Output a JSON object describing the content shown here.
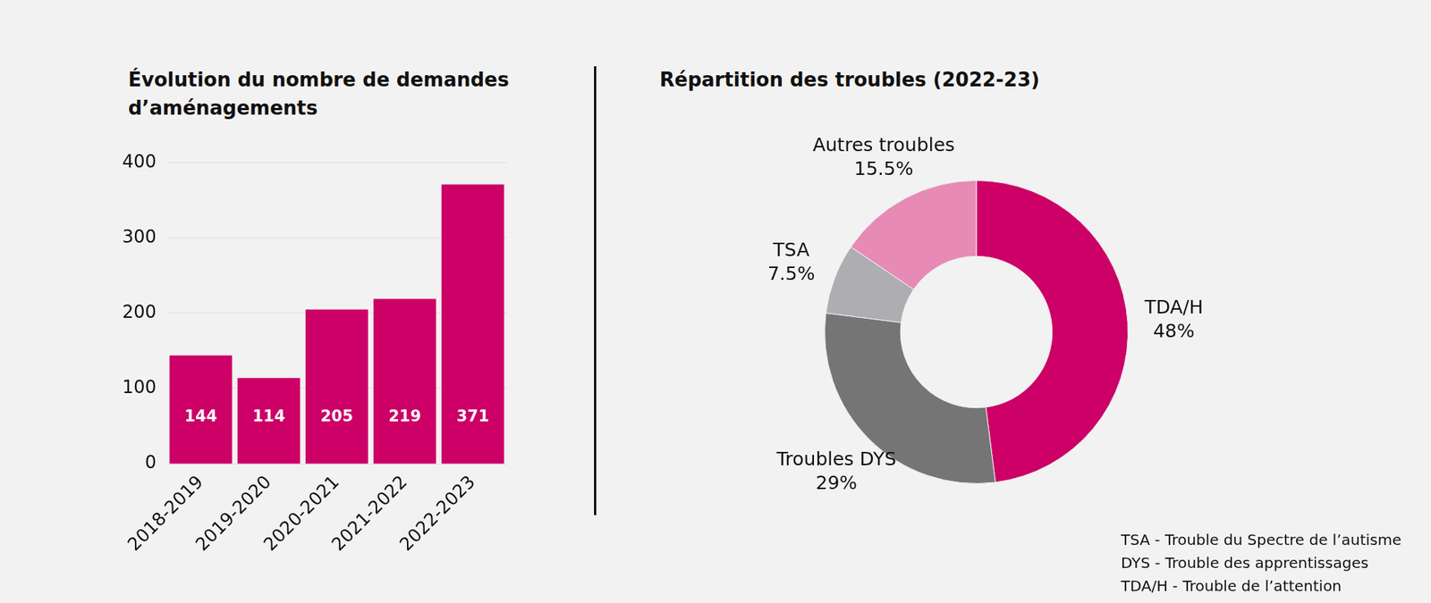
{
  "chart_data": [
    {
      "type": "bar",
      "title": "Évolution du nombre de demandes d’aménagements",
      "categories": [
        "2018-2019",
        "2019-2020",
        "2020-2021",
        "2021-2022",
        "2022-2023"
      ],
      "values": [
        144,
        114,
        205,
        219,
        371
      ],
      "color": "#cc0066",
      "ylim": [
        0,
        400
      ],
      "yticks": [
        0,
        100,
        200,
        300,
        400
      ],
      "grid": true,
      "data_labels": true
    },
    {
      "type": "doughnut",
      "title": "Répartition des troubles (2022-23)",
      "categories": [
        "TDA/H",
        "Troubles DYS",
        "TSA",
        "Autres troubles"
      ],
      "values": [
        48,
        29,
        7.5,
        15.5
      ],
      "value_labels": [
        "48%",
        "29%",
        "7.5%",
        "15.5%"
      ],
      "colors": [
        "#cc0066",
        "#757575",
        "#aeaeb2",
        "#e78ab5"
      ],
      "data_labels": true,
      "annotations": [
        "TSA - Trouble du Spectre de l’autisme",
        "DYS - Trouble des apprentissages",
        "TDA/H - Trouble de l’attention"
      ]
    }
  ]
}
